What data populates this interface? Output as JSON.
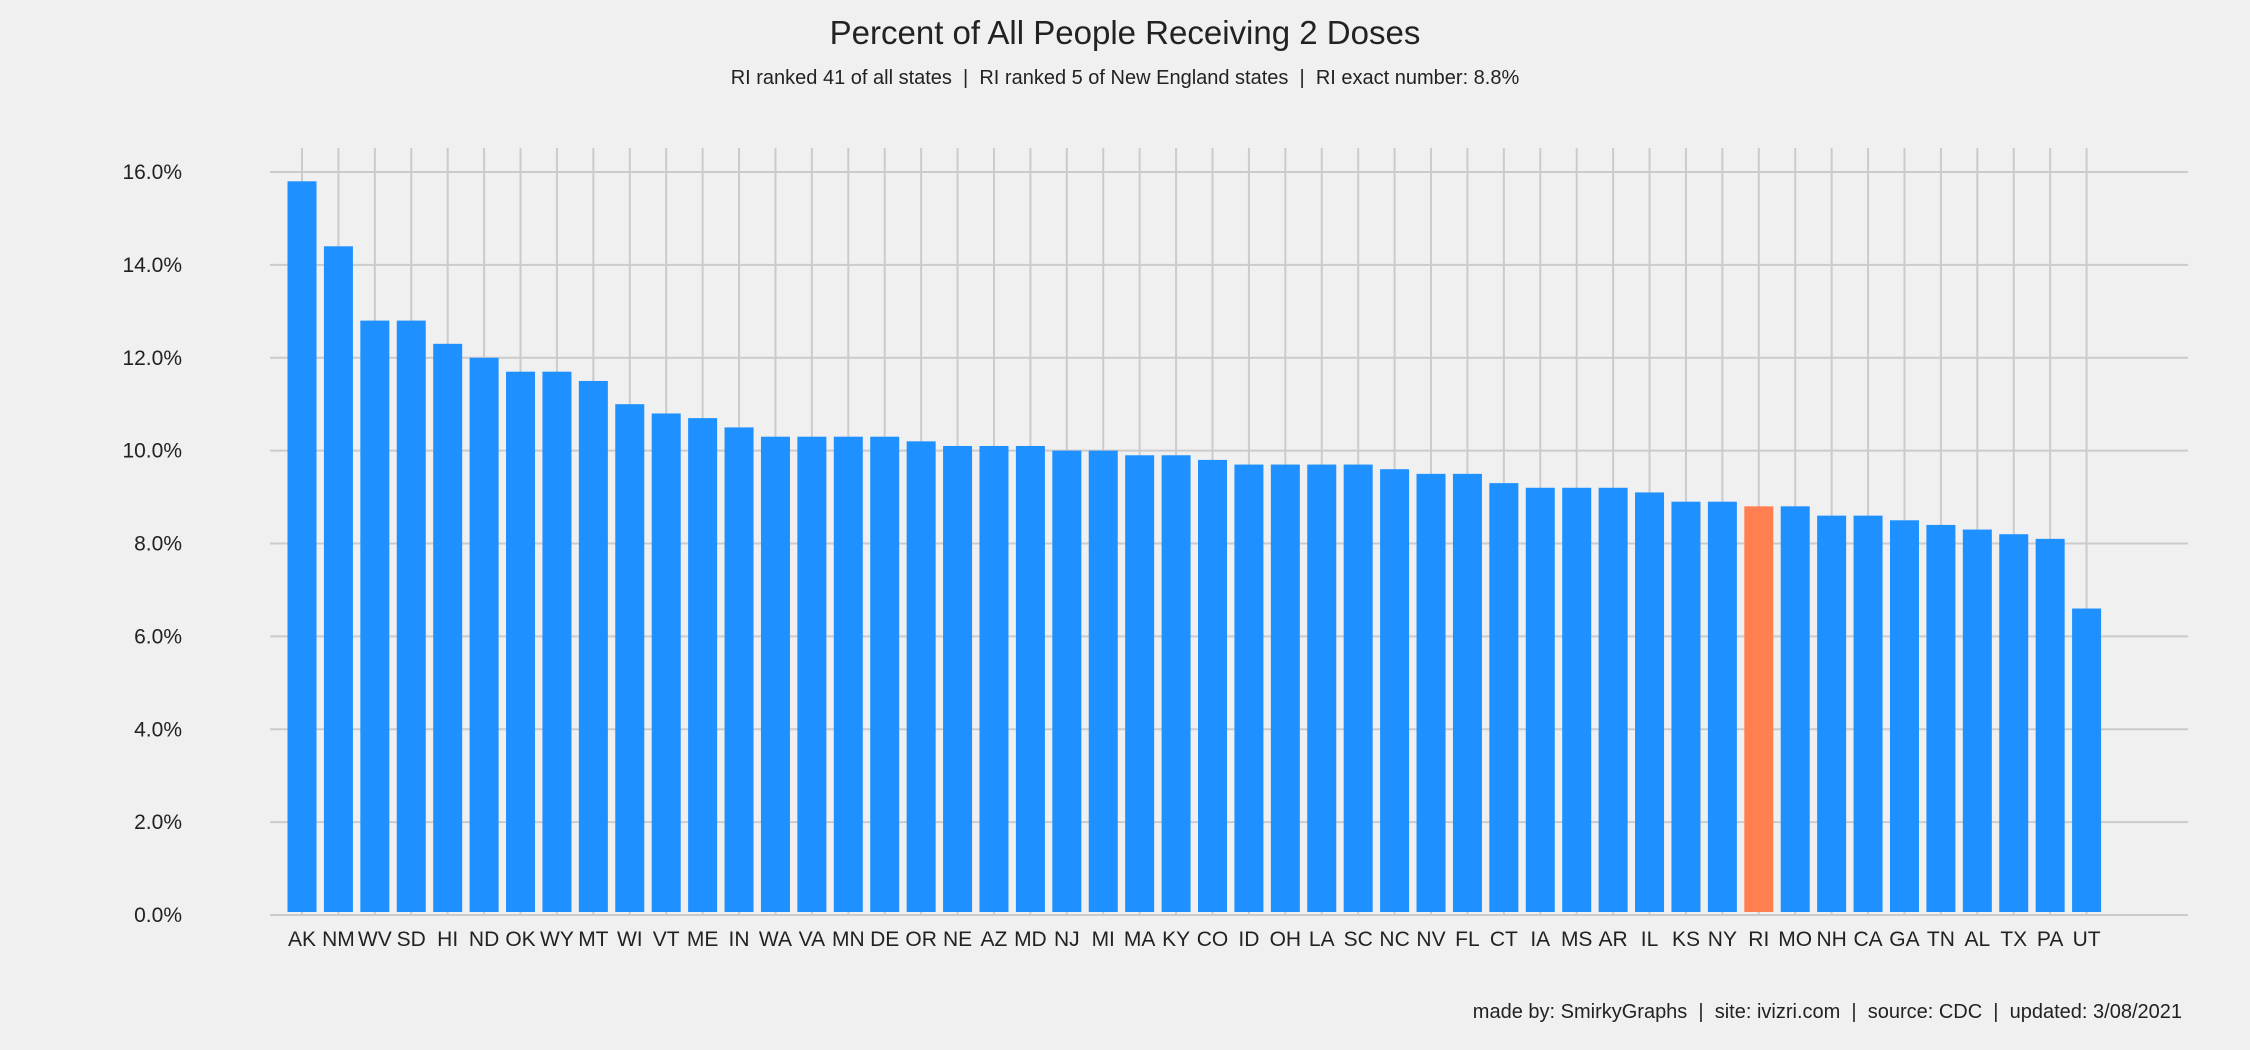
{
  "chart_data": {
    "type": "bar",
    "title": "Percent of All People Receiving 2 Doses",
    "subtitle": "RI ranked 41 of all states  |  RI ranked 5 of New England states  |  RI exact number: 8.8%",
    "xlabel": "",
    "ylabel": "",
    "ylim": [
      0,
      16.6
    ],
    "yticks": [
      0,
      2,
      4,
      6,
      8,
      10,
      12,
      14,
      16
    ],
    "ytick_labels": [
      "0.0%",
      "2.0%",
      "4.0%",
      "6.0%",
      "8.0%",
      "10.0%",
      "12.0%",
      "14.0%",
      "16.0%"
    ],
    "grid": true,
    "highlight": "RI",
    "colors": {
      "bar": "#1e90ff",
      "highlight": "#ff7f50",
      "grid": "#cbcbcb",
      "background": "#f0f0f0",
      "text": "#222222"
    },
    "categories": [
      "AK",
      "NM",
      "WV",
      "SD",
      "HI",
      "ND",
      "OK",
      "WY",
      "MT",
      "WI",
      "VT",
      "ME",
      "IN",
      "WA",
      "VA",
      "MN",
      "DE",
      "OR",
      "NE",
      "AZ",
      "MD",
      "NJ",
      "MI",
      "MA",
      "KY",
      "CO",
      "ID",
      "OH",
      "LA",
      "SC",
      "NC",
      "NV",
      "FL",
      "CT",
      "IA",
      "MS",
      "AR",
      "IL",
      "KS",
      "NY",
      "RI",
      "MO",
      "NH",
      "CA",
      "GA",
      "TN",
      "AL",
      "TX",
      "PA",
      "UT"
    ],
    "values": [
      15.8,
      14.4,
      12.8,
      12.8,
      12.3,
      12.0,
      11.7,
      11.7,
      11.5,
      11.0,
      10.8,
      10.7,
      10.5,
      10.3,
      10.3,
      10.3,
      10.3,
      10.2,
      10.1,
      10.1,
      10.1,
      10.0,
      10.0,
      9.9,
      9.9,
      9.8,
      9.7,
      9.7,
      9.7,
      9.7,
      9.6,
      9.5,
      9.5,
      9.3,
      9.2,
      9.2,
      9.2,
      9.1,
      8.9,
      8.9,
      8.8,
      8.8,
      8.6,
      8.6,
      8.5,
      8.4,
      8.3,
      8.2,
      8.1,
      6.6
    ],
    "footer": "made by: SmirkyGraphs  |  site: ivizri.com  |  source: CDC  |  updated: 3/08/2021"
  }
}
